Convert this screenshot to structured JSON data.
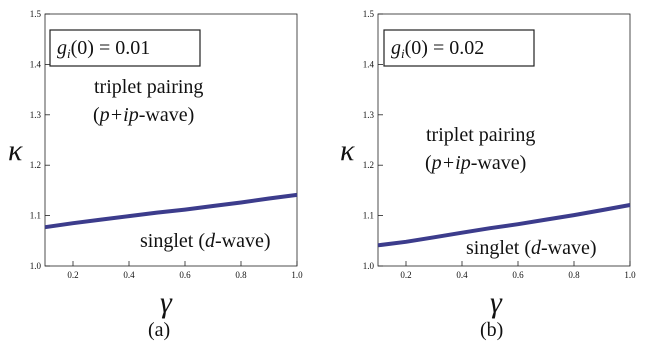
{
  "chart_data": [
    {
      "type": "line",
      "panel_label": "(a)",
      "xlabel": "γ",
      "ylabel": "κ",
      "xlim": [
        0.1,
        1.0
      ],
      "ylim": [
        1.0,
        1.5
      ],
      "x_ticks": [
        0.2,
        0.4,
        0.6,
        0.8,
        1.0
      ],
      "x_tick_labels": [
        "0.2",
        "0.4",
        "0.6",
        "0.8",
        "1.0"
      ],
      "y_ticks": [
        1.0,
        1.1,
        1.2,
        1.3,
        1.4,
        1.5
      ],
      "y_tick_labels": [
        "1.0",
        "1.1",
        "1.2",
        "1.3",
        "1.4",
        "1.5"
      ],
      "legend_box": {
        "prefix": "g",
        "subscript": "i",
        "suffix": "(0) = 0.01"
      },
      "annotations": {
        "upper_line1": "triplet pairing",
        "upper_line2_prefix": "(",
        "upper_line2_italic": "p+ip",
        "upper_line2_suffix": "-wave)",
        "lower_prefix": "singlet (",
        "lower_italic": "d",
        "lower_suffix": "-wave)"
      },
      "series": [
        {
          "x": [
            0.1,
            0.2,
            0.3,
            0.4,
            0.5,
            0.6,
            0.7,
            0.8,
            0.9,
            1.0
          ],
          "y": [
            1.077,
            1.085,
            1.092,
            1.099,
            1.106,
            1.112,
            1.119,
            1.126,
            1.134,
            1.141
          ]
        }
      ],
      "line_color": "#3c3c8c",
      "grid": false
    },
    {
      "type": "line",
      "panel_label": "(b)",
      "xlabel": "γ",
      "ylabel": "κ",
      "xlim": [
        0.1,
        1.0
      ],
      "ylim": [
        1.0,
        1.5
      ],
      "x_ticks": [
        0.2,
        0.4,
        0.6,
        0.8,
        1.0
      ],
      "x_tick_labels": [
        "0.2",
        "0.4",
        "0.6",
        "0.8",
        "1.0"
      ],
      "y_ticks": [
        1.0,
        1.1,
        1.2,
        1.3,
        1.4,
        1.5
      ],
      "y_tick_labels": [
        "1.0",
        "1.1",
        "1.2",
        "1.3",
        "1.4",
        "1.5"
      ],
      "legend_box": {
        "prefix": "g",
        "subscript": "i",
        "suffix": "(0) = 0.02"
      },
      "annotations": {
        "upper_line1": "triplet pairing",
        "upper_line2_prefix": "(",
        "upper_line2_italic": "p+ip",
        "upper_line2_suffix": "-wave)",
        "lower_prefix": "singlet (",
        "lower_italic": "d",
        "lower_suffix": "-wave)"
      },
      "series": [
        {
          "x": [
            0.1,
            0.2,
            0.3,
            0.4,
            0.5,
            0.6,
            0.7,
            0.8,
            0.9,
            1.0
          ],
          "y": [
            1.041,
            1.048,
            1.057,
            1.066,
            1.075,
            1.083,
            1.092,
            1.101,
            1.111,
            1.121
          ]
        }
      ],
      "line_color": "#3c3c8c",
      "grid": false
    }
  ]
}
